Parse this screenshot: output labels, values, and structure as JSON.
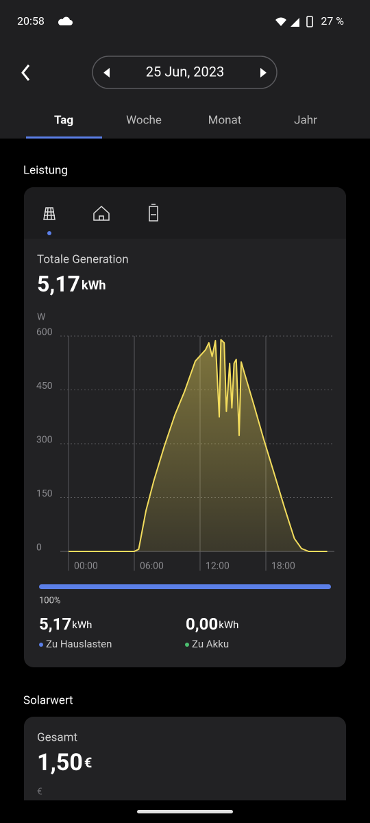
{
  "status_bar": {
    "time": "20:58",
    "battery": "27 %"
  },
  "header": {
    "date": "25 Jun, 2023",
    "tabs": [
      "Tag",
      "Woche",
      "Monat",
      "Jahr"
    ]
  },
  "section_power": {
    "title": "Leistung"
  },
  "chart_data": {
    "type": "line",
    "title": "Totale Generation",
    "total": "5,17",
    "total_unit": "kWh",
    "y_label": "W",
    "color": "#f2dc5d",
    "x": [
      0,
      6,
      6.4,
      7.06,
      7.8,
      8.75,
      9.7,
      10.6,
      11.56,
      12.5,
      12.8,
      13.1,
      13.4,
      13.75,
      13.9,
      14.2,
      14.4,
      14.7,
      14.9,
      15.1,
      15.3,
      15.56,
      15.75,
      16.25,
      16.9,
      17.8,
      18.75,
      19.7,
      20.6,
      21.25,
      21.9,
      23.6
    ],
    "values": [
      0,
      0,
      6,
      113,
      199,
      294,
      380,
      447,
      530,
      562,
      581,
      543,
      587,
      375,
      590,
      581,
      390,
      524,
      400,
      524,
      535,
      323,
      528,
      476,
      409,
      313,
      218,
      122,
      36,
      8,
      0,
      0
    ],
    "xlim": [
      0,
      24
    ],
    "ylim": [
      0,
      600
    ],
    "xticks": [
      {
        "value": 0,
        "label": "00:00"
      },
      {
        "value": 6,
        "label": "06:00"
      },
      {
        "value": 12,
        "label": "12:00"
      },
      {
        "value": 18,
        "label": "18:00"
      }
    ],
    "yticks": [
      0,
      150,
      300,
      450,
      600
    ],
    "grid": true,
    "share": {
      "value": 100,
      "label": "100%"
    },
    "split": [
      {
        "value": "5,17",
        "unit": "kWh",
        "label": "Zu Hauslasten"
      },
      {
        "value": "0,00",
        "unit": "kWh",
        "label": "Zu Akku"
      }
    ]
  },
  "section_value": {
    "title": "Solarwert",
    "label": "Gesamt",
    "value": "1,50",
    "unit": "€",
    "axis_unit": "€"
  }
}
